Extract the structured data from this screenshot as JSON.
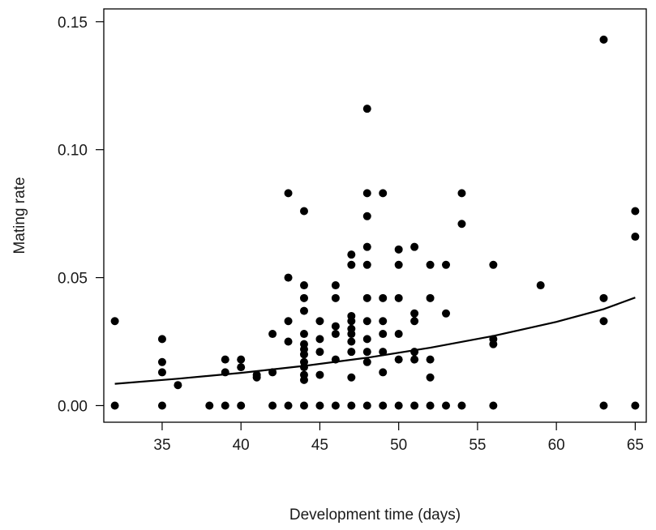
{
  "chart_data": {
    "type": "scatter",
    "title": "",
    "xlabel": "Development time (days)",
    "ylabel": "Mating rate",
    "xlim": [
      31.3,
      65.7
    ],
    "ylim": [
      -0.0065,
      0.155
    ],
    "xticks": [
      35,
      40,
      45,
      50,
      55,
      60,
      65
    ],
    "yticks": [
      0.0,
      0.05,
      0.1,
      0.15
    ],
    "ytick_labels": [
      "0.00",
      "0.05",
      "0.10",
      "0.15"
    ],
    "grid": false,
    "legend": "none",
    "point_color": "#000000",
    "points": [
      [
        32,
        0.033
      ],
      [
        32,
        0.0
      ],
      [
        35,
        0.026
      ],
      [
        35,
        0.017
      ],
      [
        35,
        0.013
      ],
      [
        35,
        0.0
      ],
      [
        36,
        0.008
      ],
      [
        38,
        0.0
      ],
      [
        39,
        0.018
      ],
      [
        39,
        0.013
      ],
      [
        39,
        0.0
      ],
      [
        40,
        0.018
      ],
      [
        40,
        0.015
      ],
      [
        40,
        0.0
      ],
      [
        41,
        0.012
      ],
      [
        41,
        0.011
      ],
      [
        42,
        0.028
      ],
      [
        42,
        0.013
      ],
      [
        42,
        0.0
      ],
      [
        43,
        0.083
      ],
      [
        43,
        0.05
      ],
      [
        43,
        0.033
      ],
      [
        43,
        0.025
      ],
      [
        43,
        0.0
      ],
      [
        44,
        0.076
      ],
      [
        44,
        0.047
      ],
      [
        44,
        0.042
      ],
      [
        44,
        0.037
      ],
      [
        44,
        0.028
      ],
      [
        44,
        0.024
      ],
      [
        44,
        0.022
      ],
      [
        44,
        0.02
      ],
      [
        44,
        0.017
      ],
      [
        44,
        0.015
      ],
      [
        44,
        0.012
      ],
      [
        44,
        0.01
      ],
      [
        44,
        0.0
      ],
      [
        45,
        0.033
      ],
      [
        45,
        0.026
      ],
      [
        45,
        0.021
      ],
      [
        45,
        0.012
      ],
      [
        45,
        0.0
      ],
      [
        46,
        0.047
      ],
      [
        46,
        0.042
      ],
      [
        46,
        0.031
      ],
      [
        46,
        0.028
      ],
      [
        46,
        0.018
      ],
      [
        46,
        0.0
      ],
      [
        47,
        0.059
      ],
      [
        47,
        0.055
      ],
      [
        47,
        0.035
      ],
      [
        47,
        0.033
      ],
      [
        47,
        0.03
      ],
      [
        47,
        0.028
      ],
      [
        47,
        0.025
      ],
      [
        47,
        0.021
      ],
      [
        47,
        0.011
      ],
      [
        47,
        0.0
      ],
      [
        48,
        0.116
      ],
      [
        48,
        0.083
      ],
      [
        48,
        0.074
      ],
      [
        48,
        0.062
      ],
      [
        48,
        0.055
      ],
      [
        48,
        0.042
      ],
      [
        48,
        0.033
      ],
      [
        48,
        0.026
      ],
      [
        48,
        0.021
      ],
      [
        48,
        0.017
      ],
      [
        48,
        0.0
      ],
      [
        49,
        0.083
      ],
      [
        49,
        0.042
      ],
      [
        49,
        0.033
      ],
      [
        49,
        0.028
      ],
      [
        49,
        0.021
      ],
      [
        49,
        0.013
      ],
      [
        49,
        0.0
      ],
      [
        50,
        0.061
      ],
      [
        50,
        0.055
      ],
      [
        50,
        0.042
      ],
      [
        50,
        0.028
      ],
      [
        50,
        0.018
      ],
      [
        50,
        0.0
      ],
      [
        51,
        0.062
      ],
      [
        51,
        0.036
      ],
      [
        51,
        0.033
      ],
      [
        51,
        0.021
      ],
      [
        51,
        0.018
      ],
      [
        51,
        0.0
      ],
      [
        52,
        0.055
      ],
      [
        52,
        0.042
      ],
      [
        52,
        0.018
      ],
      [
        52,
        0.011
      ],
      [
        52,
        0.0
      ],
      [
        53,
        0.055
      ],
      [
        53,
        0.036
      ],
      [
        53,
        0.0
      ],
      [
        54,
        0.083
      ],
      [
        54,
        0.071
      ],
      [
        54,
        0.0
      ],
      [
        56,
        0.055
      ],
      [
        56,
        0.026
      ],
      [
        56,
        0.024
      ],
      [
        56,
        0.0
      ],
      [
        59,
        0.047
      ],
      [
        63,
        0.143
      ],
      [
        63,
        0.042
      ],
      [
        63,
        0.033
      ],
      [
        63,
        0.0
      ],
      [
        65,
        0.076
      ],
      [
        65,
        0.066
      ],
      [
        65,
        0.0
      ]
    ],
    "fit_line": {
      "x": [
        32,
        36,
        40,
        44,
        48,
        52,
        56,
        60,
        63,
        65
      ],
      "y": [
        0.0085,
        0.0105,
        0.0128,
        0.0155,
        0.0187,
        0.0226,
        0.0272,
        0.0327,
        0.0377,
        0.0422
      ]
    }
  }
}
